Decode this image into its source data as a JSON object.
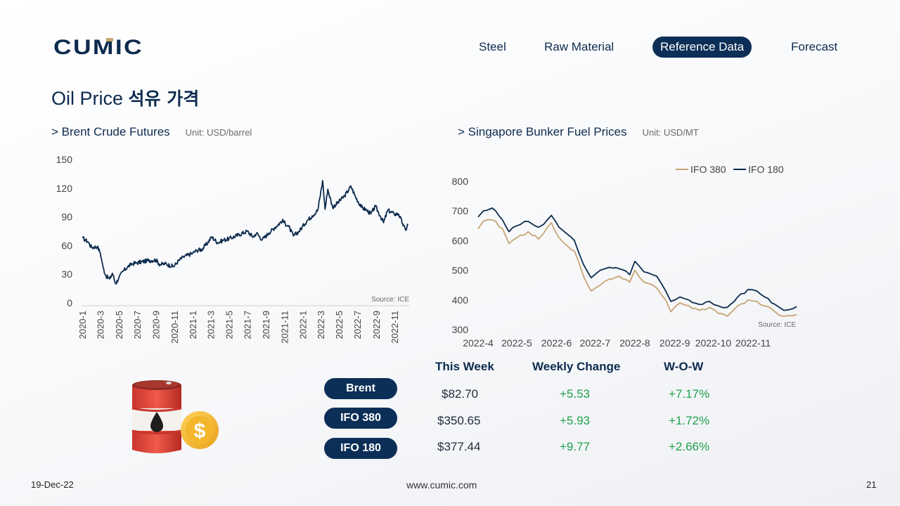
{
  "header": {
    "logo_text": "CUMIC",
    "nav": [
      {
        "label": "Steel",
        "active": false
      },
      {
        "label": "Raw Material",
        "active": false
      },
      {
        "label": "Reference Data",
        "active": true
      },
      {
        "label": "Forecast",
        "active": false
      }
    ]
  },
  "page": {
    "title_en": "Oil Price",
    "title_ko": "석유 가격"
  },
  "colors": {
    "navy": "#0c2f57",
    "ifo380": "#c8a572",
    "ifo180": "#0d2b4e",
    "positive": "#1fa14b"
  },
  "brent_section": {
    "title": "> Brent Crude Futures",
    "unit": "Unit: USD/barrel"
  },
  "bunker_section": {
    "title": "> Singapore Bunker Fuel Prices",
    "unit": "Unit: USD/MT"
  },
  "chart_data": [
    {
      "type": "line",
      "title": "> Brent Crude Futures",
      "ylabel": "Unit: USD/barrel",
      "source": "Source: ICE",
      "ylim": [
        0,
        150
      ],
      "yticks": [
        0,
        30,
        60,
        90,
        120,
        150
      ],
      "xlim": [
        "2020-1",
        "2022-12"
      ],
      "xticks": [
        "2020-1",
        "2020-3",
        "2020-5",
        "2020-7",
        "2020-9",
        "2020-11",
        "2021-1",
        "2021-3",
        "2021-5",
        "2021-7",
        "2021-9",
        "2021-11",
        "2022-1",
        "2022-3",
        "2022-5",
        "2022-7",
        "2022-9",
        "2022-11"
      ],
      "grid": false,
      "series": [
        {
          "color": "#0d2b4e",
          "points": [
            [
              "2020-01-02",
              68
            ],
            [
              "2020-01-10",
              66
            ],
            [
              "2020-01-20",
              64
            ],
            [
              "2020-02-01",
              58
            ],
            [
              "2020-02-20",
              59
            ],
            [
              "2020-03-01",
              52
            ],
            [
              "2020-03-10",
              37
            ],
            [
              "2020-03-20",
              28
            ],
            [
              "2020-04-01",
              25
            ],
            [
              "2020-04-10",
              31
            ],
            [
              "2020-04-21",
              20
            ],
            [
              "2020-05-01",
              26
            ],
            [
              "2020-05-15",
              33
            ],
            [
              "2020-06-01",
              38
            ],
            [
              "2020-06-15",
              41
            ],
            [
              "2020-07-01",
              42
            ],
            [
              "2020-08-01",
              44
            ],
            [
              "2020-09-01",
              45
            ],
            [
              "2020-09-15",
              40
            ],
            [
              "2020-10-01",
              41
            ],
            [
              "2020-10-30",
              38
            ],
            [
              "2020-11-15",
              44
            ],
            [
              "2020-12-01",
              48
            ],
            [
              "2021-01-01",
              52
            ],
            [
              "2021-01-15",
              55
            ],
            [
              "2021-02-01",
              56
            ],
            [
              "2021-02-20",
              63
            ],
            [
              "2021-03-05",
              69
            ],
            [
              "2021-03-25",
              63
            ],
            [
              "2021-04-15",
              66
            ],
            [
              "2021-05-01",
              67
            ],
            [
              "2021-06-01",
              71
            ],
            [
              "2021-07-01",
              75
            ],
            [
              "2021-07-20",
              69
            ],
            [
              "2021-08-01",
              73
            ],
            [
              "2021-08-20",
              66
            ],
            [
              "2021-09-10",
              73
            ],
            [
              "2021-10-01",
              79
            ],
            [
              "2021-10-25",
              86
            ],
            [
              "2021-11-15",
              80
            ],
            [
              "2021-12-01",
              70
            ],
            [
              "2021-12-20",
              75
            ],
            [
              "2022-01-15",
              86
            ],
            [
              "2022-02-01",
              91
            ],
            [
              "2022-02-20",
              97
            ],
            [
              "2022-03-08",
              128
            ],
            [
              "2022-03-16",
              98
            ],
            [
              "2022-03-25",
              119
            ],
            [
              "2022-04-10",
              100
            ],
            [
              "2022-05-01",
              106
            ],
            [
              "2022-05-20",
              112
            ],
            [
              "2022-06-10",
              122
            ],
            [
              "2022-06-25",
              111
            ],
            [
              "2022-07-15",
              100
            ],
            [
              "2022-08-01",
              97
            ],
            [
              "2022-08-15",
              93
            ],
            [
              "2022-08-30",
              101
            ],
            [
              "2022-09-15",
              91
            ],
            [
              "2022-09-26",
              84
            ],
            [
              "2022-10-10",
              97
            ],
            [
              "2022-10-31",
              93
            ],
            [
              "2022-11-15",
              93
            ],
            [
              "2022-11-28",
              83
            ],
            [
              "2022-12-08",
              76
            ],
            [
              "2022-12-16",
              82.7
            ]
          ]
        }
      ]
    },
    {
      "type": "line",
      "title": "> Singapore Bunker Fuel Prices",
      "ylabel": "Unit: USD/MT",
      "source": "Source: ICE",
      "ylim": [
        300,
        800
      ],
      "yticks": [
        300,
        400,
        500,
        600,
        700,
        800
      ],
      "xticks": [
        "2022-4",
        "2022-5",
        "2022-6",
        "2022-7",
        "2022-8",
        "2022-9",
        "2022-10",
        "2022-11"
      ],
      "legend": "top-right",
      "grid": false,
      "series": [
        {
          "name": "IFO 380",
          "color": "#c8a572",
          "points": [
            [
              "2022-04-01",
              640
            ],
            [
              "2022-04-05",
              665
            ],
            [
              "2022-04-12",
              670
            ],
            [
              "2022-04-20",
              640
            ],
            [
              "2022-04-25",
              590
            ],
            [
              "2022-05-01",
              610
            ],
            [
              "2022-05-10",
              630
            ],
            [
              "2022-05-18",
              605
            ],
            [
              "2022-05-22",
              625
            ],
            [
              "2022-05-28",
              660
            ],
            [
              "2022-06-03",
              610
            ],
            [
              "2022-06-10",
              580
            ],
            [
              "2022-06-15",
              565
            ],
            [
              "2022-06-22",
              480
            ],
            [
              "2022-06-28",
              430
            ],
            [
              "2022-07-05",
              450
            ],
            [
              "2022-07-12",
              470
            ],
            [
              "2022-07-20",
              480
            ],
            [
              "2022-07-28",
              460
            ],
            [
              "2022-08-01",
              500
            ],
            [
              "2022-08-08",
              460
            ],
            [
              "2022-08-18",
              440
            ],
            [
              "2022-08-25",
              400
            ],
            [
              "2022-08-29",
              360
            ],
            [
              "2022-09-05",
              390
            ],
            [
              "2022-09-12",
              380
            ],
            [
              "2022-09-20",
              365
            ],
            [
              "2022-09-28",
              375
            ],
            [
              "2022-10-05",
              355
            ],
            [
              "2022-10-12",
              345
            ],
            [
              "2022-10-20",
              380
            ],
            [
              "2022-10-28",
              400
            ],
            [
              "2022-11-04",
              395
            ],
            [
              "2022-11-10",
              380
            ],
            [
              "2022-11-18",
              360
            ],
            [
              "2022-11-25",
              345
            ],
            [
              "2022-12-05",
              350.65
            ]
          ]
        },
        {
          "name": "IFO 180",
          "color": "#0d2b4e",
          "points": [
            [
              "2022-04-01",
              680
            ],
            [
              "2022-04-05",
              700
            ],
            [
              "2022-04-12",
              710
            ],
            [
              "2022-04-20",
              670
            ],
            [
              "2022-04-25",
              630
            ],
            [
              "2022-05-01",
              650
            ],
            [
              "2022-05-10",
              665
            ],
            [
              "2022-05-18",
              645
            ],
            [
              "2022-05-22",
              655
            ],
            [
              "2022-05-28",
              685
            ],
            [
              "2022-06-03",
              645
            ],
            [
              "2022-06-10",
              620
            ],
            [
              "2022-06-15",
              600
            ],
            [
              "2022-06-22",
              520
            ],
            [
              "2022-06-28",
              475
            ],
            [
              "2022-07-05",
              500
            ],
            [
              "2022-07-12",
              510
            ],
            [
              "2022-07-20",
              505
            ],
            [
              "2022-07-28",
              485
            ],
            [
              "2022-08-01",
              530
            ],
            [
              "2022-08-08",
              495
            ],
            [
              "2022-08-18",
              480
            ],
            [
              "2022-08-25",
              430
            ],
            [
              "2022-08-29",
              395
            ],
            [
              "2022-09-05",
              410
            ],
            [
              "2022-09-12",
              400
            ],
            [
              "2022-09-20",
              385
            ],
            [
              "2022-09-28",
              395
            ],
            [
              "2022-10-05",
              380
            ],
            [
              "2022-10-12",
              375
            ],
            [
              "2022-10-20",
              410
            ],
            [
              "2022-10-28",
              435
            ],
            [
              "2022-11-04",
              430
            ],
            [
              "2022-11-10",
              410
            ],
            [
              "2022-11-18",
              385
            ],
            [
              "2022-11-25",
              365
            ],
            [
              "2022-12-05",
              377.44
            ]
          ]
        }
      ]
    }
  ],
  "table": {
    "headers": [
      "This Week",
      "Weekly Change",
      "W-O-W"
    ],
    "rows": [
      {
        "label": "Brent",
        "price": "$82.70",
        "change": "+5.53",
        "wow": "+7.17%"
      },
      {
        "label": "IFO 380",
        "price": "$350.65",
        "change": "+5.93",
        "wow": "+1.72%"
      },
      {
        "label": "IFO 180",
        "price": "$377.44",
        "change": "+9.77",
        "wow": "+2.66%"
      }
    ]
  },
  "footer": {
    "date": "19-Dec-22",
    "website": "www.cumic.com",
    "page_number": "21"
  }
}
